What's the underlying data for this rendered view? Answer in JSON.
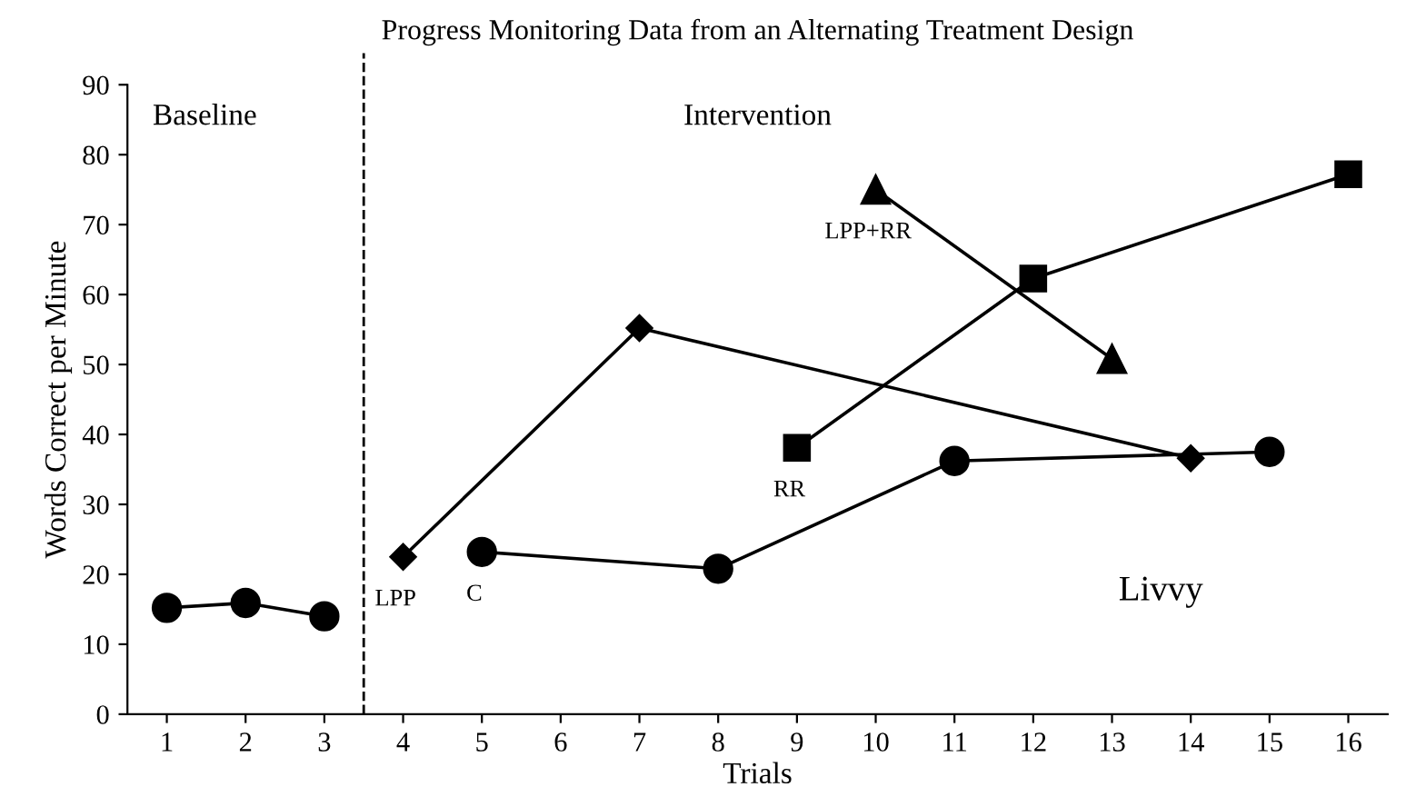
{
  "chart_data": {
    "type": "line",
    "title": "Progress Monitoring Data from an Alternating Treatment Design",
    "xlabel": "Trials",
    "ylabel": "Words Correct per Minute",
    "xlim": [
      0.5,
      16.5
    ],
    "xticks": [
      1,
      2,
      3,
      4,
      5,
      6,
      7,
      8,
      9,
      10,
      11,
      12,
      13,
      14,
      15,
      16
    ],
    "ylim": [
      0,
      90
    ],
    "yticks": [
      0,
      10,
      20,
      30,
      40,
      50,
      60,
      70,
      80,
      90
    ],
    "grid": false,
    "legend": false,
    "line_style": "solid",
    "series": [
      {
        "color": "#000000",
        "marker": "circle",
        "x": [
          1,
          2,
          3
        ],
        "values": [
          15.2,
          15.9,
          14.0
        ]
      },
      {
        "name": "LPP",
        "color": "#000000",
        "marker": "diamond",
        "x": [
          4,
          7,
          14
        ],
        "values": [
          22.5,
          55.2,
          36.6
        ]
      },
      {
        "name": "C",
        "color": "#000000",
        "marker": "circle",
        "x": [
          5,
          8,
          11,
          15
        ],
        "values": [
          23.2,
          20.8,
          36.2,
          37.5
        ]
      },
      {
        "name": "RR",
        "color": "#000000",
        "marker": "square",
        "x": [
          9,
          12,
          16
        ],
        "values": [
          38.1,
          62.3,
          77.2
        ]
      },
      {
        "name": "LPP+RR",
        "color": "#000000",
        "marker": "triangle",
        "x": [
          10,
          13
        ],
        "values": [
          75.0,
          50.8
        ]
      }
    ],
    "ref_lines": [
      {
        "axis": "x",
        "value": 3.5,
        "color": "#000000",
        "line_style": "dashed"
      }
    ],
    "annotations": [
      "Baseline",
      "Intervention",
      "Livvy"
    ]
  }
}
